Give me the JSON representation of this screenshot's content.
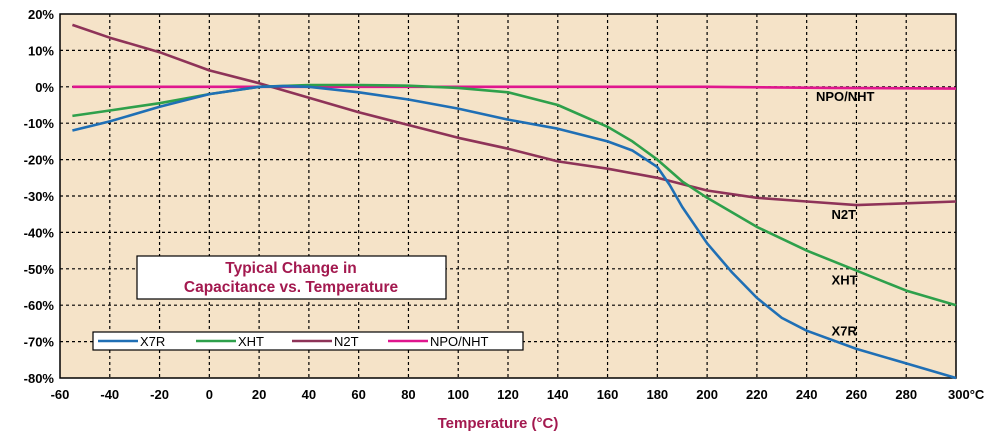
{
  "chart_data": {
    "type": "line",
    "title": "Typical Change in\nCapacitance vs. Temperature",
    "title_lines": [
      "Typical Change in",
      "Capacitance vs. Temperature"
    ],
    "xlabel": "Temperature (°C)",
    "ylabel": "",
    "xlim": [
      -60,
      300
    ],
    "ylim": [
      -80,
      20
    ],
    "x_ticks": [
      -60,
      -40,
      -20,
      0,
      20,
      40,
      60,
      80,
      100,
      120,
      140,
      160,
      180,
      200,
      220,
      240,
      260,
      280,
      300
    ],
    "x_tick_labels": [
      "-60",
      "-40",
      "-20",
      "0",
      "20",
      "40",
      "60",
      "80",
      "100",
      "120",
      "140",
      "160",
      "180",
      "200",
      "220",
      "240",
      "260",
      "280",
      "300°C"
    ],
    "y_ticks": [
      20,
      10,
      0,
      -10,
      -20,
      -30,
      -40,
      -50,
      -60,
      -70,
      -80
    ],
    "y_tick_labels": [
      "20%",
      "10%",
      "0%",
      "-10%",
      "-20%",
      "-30%",
      "-40%",
      "-50%",
      "-60%",
      "-70%",
      "-80%"
    ],
    "grid": true,
    "legend_position": "bottom-left",
    "colors": {
      "plot_background": "#f5e3c8",
      "title_text": "#a3194f",
      "xlabel_text": "#a3194f",
      "X7R": "#1f6fb5",
      "XHT": "#2ea04b",
      "N2T": "#8e3358",
      "NPO/NHT": "#e0168e"
    },
    "series": [
      {
        "name": "X7R",
        "color": "#1f6fb5",
        "x": [
          -55,
          -40,
          -20,
          0,
          20,
          30,
          40,
          60,
          80,
          100,
          120,
          140,
          160,
          170,
          180,
          185,
          190,
          200,
          210,
          220,
          230,
          240,
          260,
          280,
          300
        ],
        "y": [
          -12,
          -9.5,
          -5.5,
          -2,
          0,
          0.2,
          0,
          -1.5,
          -3.5,
          -6,
          -9,
          -11.5,
          -15,
          -17.5,
          -22,
          -27,
          -33,
          -43,
          -51,
          -58,
          -63.5,
          -67,
          -72,
          -76,
          -80
        ]
      },
      {
        "name": "XHT",
        "color": "#2ea04b",
        "x": [
          -55,
          -40,
          -20,
          0,
          20,
          40,
          60,
          80,
          100,
          120,
          140,
          160,
          170,
          180,
          190,
          200,
          220,
          240,
          260,
          280,
          300
        ],
        "y": [
          -8,
          -6.5,
          -4.5,
          -2,
          0,
          0.5,
          0.5,
          0.3,
          -0.3,
          -1.5,
          -5,
          -11,
          -15,
          -20,
          -26,
          -30.5,
          -38.5,
          -45,
          -50.5,
          -56,
          -60
        ]
      },
      {
        "name": "N2T",
        "color": "#8e3358",
        "x": [
          -55,
          -40,
          -20,
          0,
          20,
          40,
          60,
          80,
          100,
          120,
          140,
          160,
          180,
          200,
          220,
          240,
          260,
          280,
          300
        ],
        "y": [
          17,
          13.5,
          9.5,
          4.5,
          1,
          -3,
          -7,
          -10.5,
          -14,
          -17,
          -20.5,
          -22.5,
          -25,
          -28.5,
          -30.5,
          -31.5,
          -32.5,
          -32,
          -31.5
        ]
      },
      {
        "name": "NPO/NHT",
        "color": "#e0168e",
        "x": [
          -55,
          0,
          100,
          200,
          250,
          300
        ],
        "y": [
          0,
          0,
          0,
          0,
          -0.3,
          -0.5
        ]
      }
    ],
    "annotations": [
      {
        "text": "NPO/NHT",
        "x": 255,
        "y": -2.5
      },
      {
        "text": "N2T",
        "x": 250,
        "y": -35
      },
      {
        "text": "XHT",
        "x": 250,
        "y": -53
      },
      {
        "text": "X7R",
        "x": 250,
        "y": -67
      }
    ]
  }
}
